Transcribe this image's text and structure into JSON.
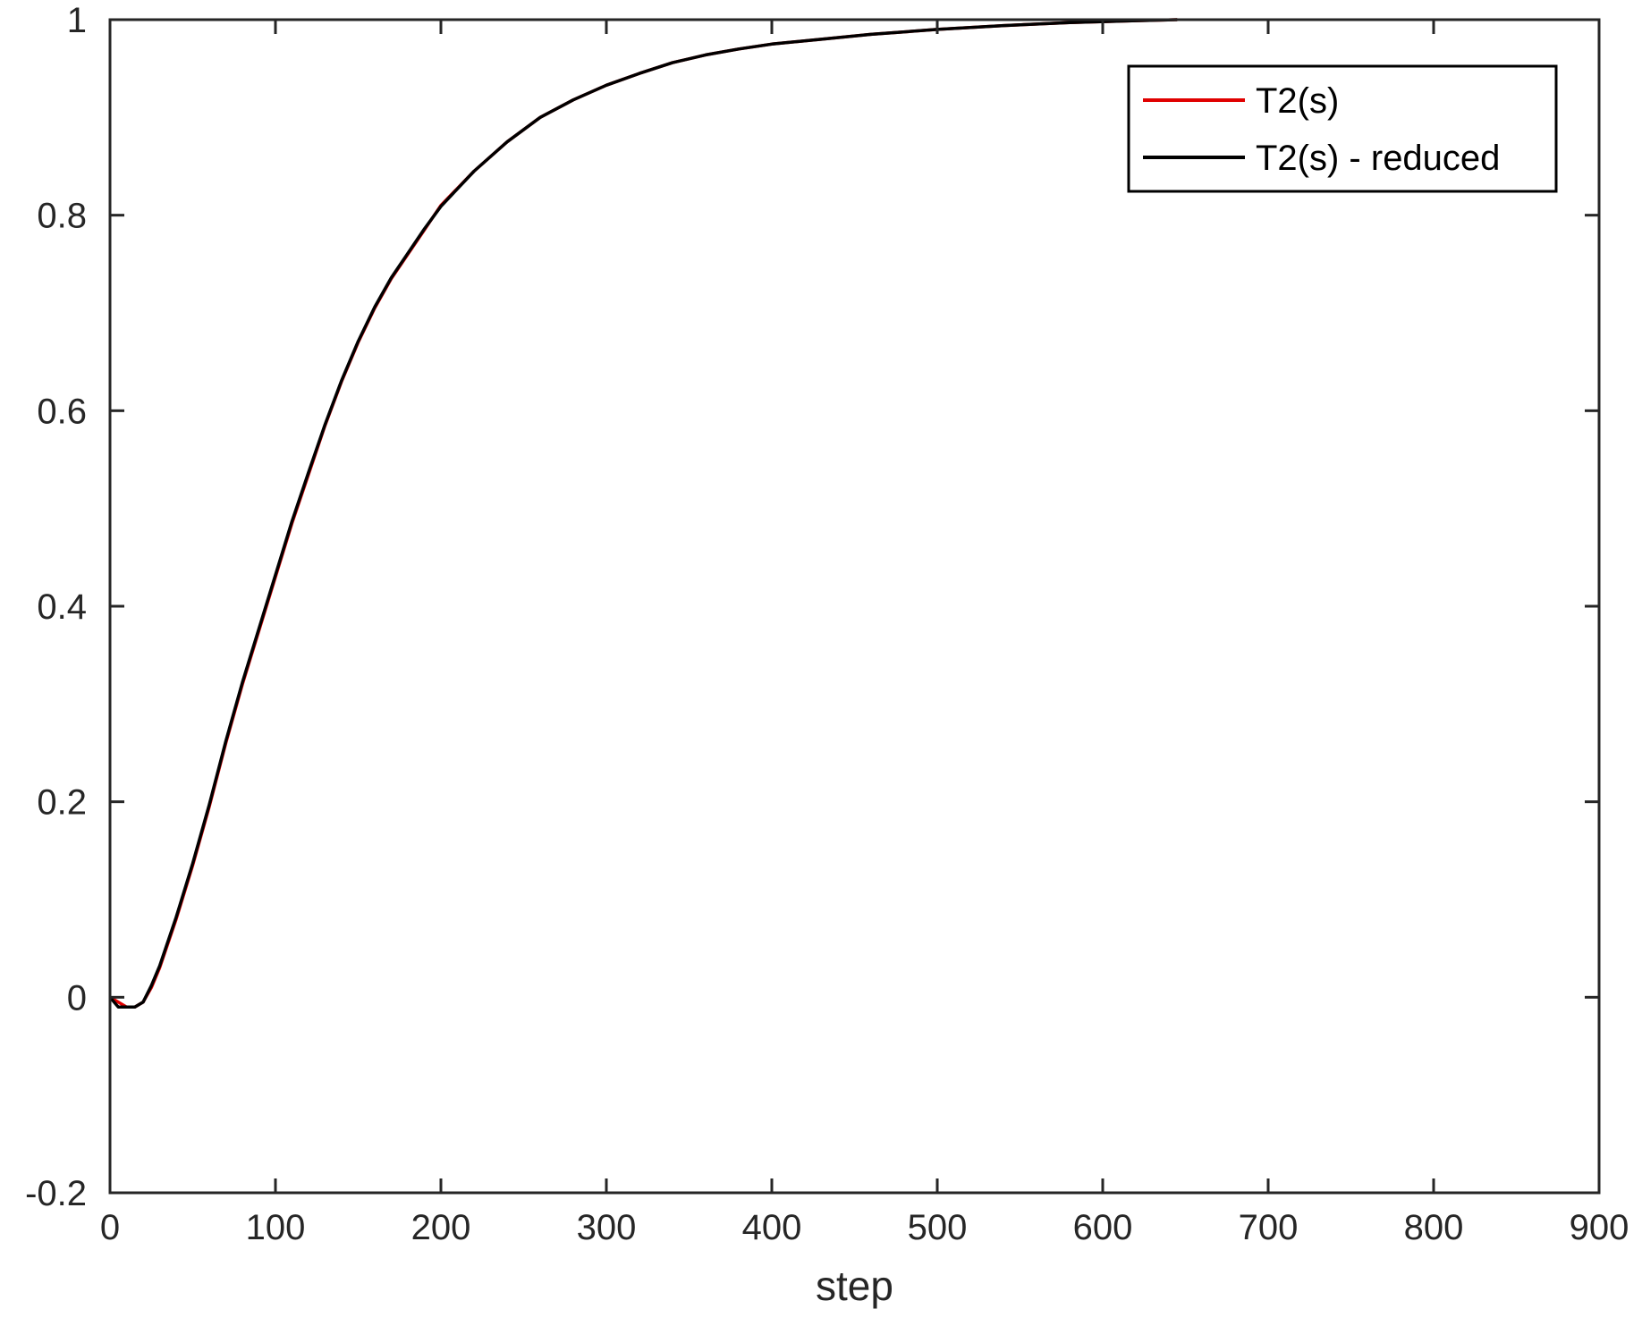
{
  "chart_data": {
    "type": "line",
    "title": "",
    "xlabel": "step",
    "ylabel": "",
    "xlim": [
      0,
      900
    ],
    "ylim": [
      -0.2,
      1
    ],
    "xticks": [
      0,
      100,
      200,
      300,
      400,
      500,
      600,
      700,
      800,
      900
    ],
    "yticks": [
      -0.2,
      0,
      0.2,
      0.4,
      0.6,
      0.8,
      1
    ],
    "xtick_labels": [
      "0",
      "100",
      "200",
      "300",
      "400",
      "500",
      "600",
      "700",
      "800",
      "900"
    ],
    "ytick_labels": [
      "-0.2",
      "0",
      "0.2",
      "0.4",
      "0.6",
      "0.8",
      "1"
    ],
    "grid": false,
    "legend_position": "top-right",
    "series": [
      {
        "name": "T2(s)",
        "color": "#e00000",
        "x": [
          0,
          5,
          10,
          15,
          20,
          25,
          30,
          40,
          50,
          60,
          70,
          80,
          90,
          100,
          110,
          120,
          130,
          140,
          150,
          160,
          170,
          180,
          190,
          200,
          220,
          240,
          260,
          280,
          300,
          320,
          340,
          360,
          380,
          400,
          430,
          460,
          500,
          540,
          580,
          620,
          645
        ],
        "y": [
          0,
          -0.005,
          -0.01,
          -0.01,
          -0.005,
          0.01,
          0.03,
          0.08,
          0.135,
          0.195,
          0.26,
          0.32,
          0.375,
          0.43,
          0.485,
          0.535,
          0.585,
          0.63,
          0.67,
          0.705,
          0.735,
          0.76,
          0.785,
          0.81,
          0.845,
          0.875,
          0.9,
          0.918,
          0.933,
          0.945,
          0.956,
          0.964,
          0.97,
          0.975,
          0.98,
          0.985,
          0.99,
          0.994,
          0.997,
          0.999,
          1.0
        ]
      },
      {
        "name": "T2(s) - reduced",
        "color": "#000000",
        "x": [
          0,
          5,
          10,
          15,
          20,
          25,
          30,
          40,
          50,
          60,
          70,
          80,
          90,
          100,
          110,
          120,
          130,
          140,
          150,
          160,
          170,
          180,
          190,
          200,
          220,
          240,
          260,
          280,
          300,
          320,
          340,
          360,
          380,
          400,
          430,
          460,
          500,
          540,
          580,
          620,
          645
        ],
        "y": [
          0,
          -0.01,
          -0.01,
          -0.01,
          -0.005,
          0.012,
          0.032,
          0.082,
          0.137,
          0.197,
          0.262,
          0.322,
          0.377,
          0.432,
          0.487,
          0.537,
          0.586,
          0.631,
          0.671,
          0.706,
          0.736,
          0.761,
          0.786,
          0.809,
          0.845,
          0.875,
          0.9,
          0.918,
          0.933,
          0.945,
          0.956,
          0.964,
          0.97,
          0.975,
          0.98,
          0.985,
          0.99,
          0.994,
          0.997,
          0.999,
          1.0
        ]
      }
    ]
  }
}
